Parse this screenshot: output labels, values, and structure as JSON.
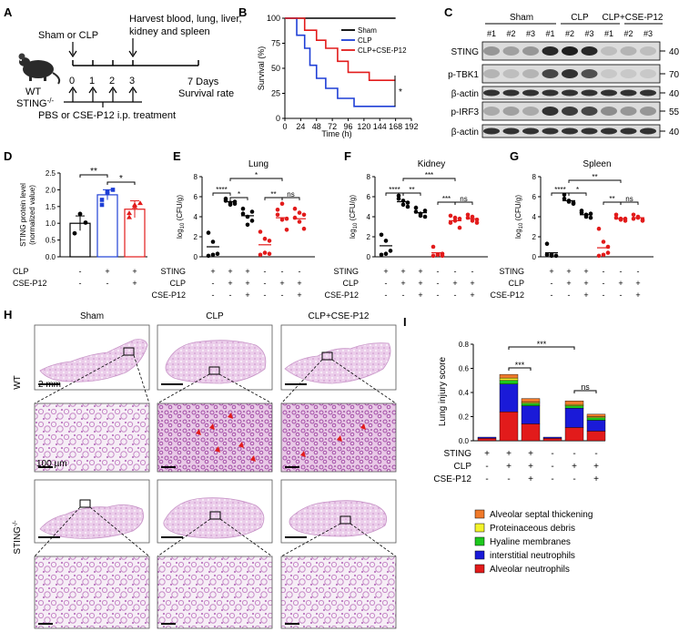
{
  "panel_letters": [
    "A",
    "B",
    "C",
    "D",
    "E",
    "F",
    "G",
    "H",
    "I"
  ],
  "panelA": {
    "top_left": "Sham or CLP",
    "top_right": "Harvest blood, lung, liver,",
    "top_right2": "kidney and spleen",
    "days": [
      "0",
      "1",
      "2",
      "3"
    ],
    "day7": "7 Days",
    "survival": "Survival rate",
    "mouse_line1": "WT",
    "mouse_line2": "STING",
    "mouse_sup": "-/-",
    "treatment": "PBS or CSE-P12 i.p. treatment"
  },
  "chartB": {
    "type": "line",
    "ylabel": "Survival (%)",
    "xlabel": "Time (h)",
    "x_ticks": [
      0,
      24,
      48,
      72,
      96,
      120,
      144,
      168,
      192
    ],
    "y_ticks": [
      0,
      25,
      50,
      75,
      100
    ],
    "colors": {
      "Sham": "#000000",
      "CLP": "#1f3fd6",
      "CLP+CSE-P12": "#e21b1b"
    },
    "series": [
      {
        "name": "Sham",
        "points": [
          [
            0,
            100
          ],
          [
            168,
            100
          ]
        ]
      },
      {
        "name": "CLP",
        "points": [
          [
            0,
            100
          ],
          [
            18,
            100
          ],
          [
            18,
            83
          ],
          [
            30,
            83
          ],
          [
            30,
            70
          ],
          [
            38,
            70
          ],
          [
            38,
            53
          ],
          [
            48,
            53
          ],
          [
            48,
            40
          ],
          [
            62,
            40
          ],
          [
            62,
            30
          ],
          [
            80,
            30
          ],
          [
            80,
            20
          ],
          [
            105,
            20
          ],
          [
            105,
            12
          ],
          [
            168,
            12
          ]
        ]
      },
      {
        "name": "CLP+CSE-P12",
        "points": [
          [
            0,
            100
          ],
          [
            30,
            100
          ],
          [
            30,
            88
          ],
          [
            48,
            88
          ],
          [
            48,
            78
          ],
          [
            62,
            78
          ],
          [
            62,
            70
          ],
          [
            80,
            70
          ],
          [
            80,
            57
          ],
          [
            96,
            57
          ],
          [
            96,
            46
          ],
          [
            128,
            46
          ],
          [
            128,
            38
          ],
          [
            168,
            38
          ]
        ]
      }
    ],
    "sig": "*"
  },
  "panelC": {
    "groups": [
      "Sham",
      "CLP",
      "CLP+CSE-P12"
    ],
    "lanes": [
      "#1",
      "#2",
      "#3",
      "#1",
      "#2",
      "#3",
      "#1",
      "#2",
      "#3"
    ],
    "rows": [
      "STING",
      "p-TBK1",
      "β-actin",
      "p-IRF3",
      "β-actin"
    ],
    "mw": [
      "40",
      "70",
      "40",
      "55",
      "40"
    ]
  },
  "chartD": {
    "type": "bar",
    "ylabel": "STING protein level",
    "ylabel2": "(normalized value)",
    "y_ticks": [
      "0.0",
      "0.5",
      "1.0",
      "1.5",
      "2.0",
      "2.5"
    ],
    "values": [
      1.0,
      1.85,
      1.42
    ],
    "errors": [
      0.22,
      0.15,
      0.25
    ],
    "points": [
      [
        0.7,
        1.28,
        1.02
      ],
      [
        1.55,
        1.95,
        2.0,
        1.7,
        1.9
      ],
      [
        1.18,
        1.55,
        1.6,
        1.3,
        1.5
      ]
    ],
    "colors": [
      "#000000",
      "#1f3fd6",
      "#e21b1b"
    ],
    "sig": [
      "**",
      "*"
    ],
    "row_labels": [
      "CLP",
      "CSE-P12"
    ],
    "row_values": [
      [
        "-",
        "+",
        "+"
      ],
      [
        "-",
        "-",
        "+"
      ]
    ]
  },
  "chartE": {
    "title": "Lung",
    "type": "scatter",
    "ylabel": "log",
    "ylabel_sub": "10",
    "ylabel_rest": " (CFU/g)",
    "y_ticks": [
      "0",
      "2",
      "4",
      "6",
      "8"
    ],
    "groups": [
      {
        "color": "#000000",
        "values": [
          2.4,
          1.5,
          0.3,
          0.1,
          0.2
        ],
        "mean": 1.0,
        "filled": true
      },
      {
        "color": "#000000",
        "values": [
          5.6,
          5.2,
          5.5,
          5.8,
          5.4,
          5.3
        ],
        "mean": 5.5,
        "filled": true
      },
      {
        "color": "#000000",
        "values": [
          4.8,
          4.0,
          3.6,
          4.3,
          3.2,
          4.5
        ],
        "mean": 4.1,
        "filled": true
      },
      {
        "color": "#e21b1b",
        "values": [
          2.5,
          1.8,
          0.3,
          0.2,
          0.4,
          1.6
        ],
        "mean": 1.2,
        "filled": true
      },
      {
        "color": "#e21b1b",
        "values": [
          4.7,
          3.7,
          2.7,
          4.2,
          5.3,
          3.8
        ],
        "mean": 3.9,
        "filled": true
      },
      {
        "color": "#e21b1b",
        "values": [
          4.8,
          4.4,
          2.8,
          3.9,
          3.5,
          4.2
        ],
        "mean": 3.8,
        "filled": true
      }
    ],
    "sig": [
      "****",
      "*",
      "*",
      "**",
      "ns"
    ]
  },
  "chartF": {
    "title": "Kidney",
    "type": "scatter",
    "y_ticks": [
      "0",
      "2",
      "4",
      "6",
      "8"
    ],
    "groups": [
      {
        "color": "#000000",
        "values": [
          2.2,
          1.6,
          0.6,
          0.2,
          0.3
        ],
        "mean": 1.1,
        "filled": true
      },
      {
        "color": "#000000",
        "values": [
          6.1,
          5.6,
          5.4,
          5.8,
          5.2,
          5.0
        ],
        "mean": 5.5,
        "filled": true
      },
      {
        "color": "#000000",
        "values": [
          4.9,
          4.3,
          4.0,
          4.5,
          4.1,
          4.6
        ],
        "mean": 4.4,
        "filled": true
      },
      {
        "color": "#e21b1b",
        "values": [
          1.0,
          0.2,
          0.3,
          0.1,
          0.2,
          0.1
        ],
        "mean": 0.4,
        "filled": true
      },
      {
        "color": "#e21b1b",
        "values": [
          4.1,
          3.6,
          2.9,
          3.4,
          3.9,
          3.8
        ],
        "mean": 3.6,
        "filled": true
      },
      {
        "color": "#e21b1b",
        "values": [
          4.2,
          3.6,
          3.4,
          3.9,
          4.0,
          3.7
        ],
        "mean": 3.8,
        "filled": true
      }
    ],
    "sig": [
      "****",
      "**",
      "***",
      "***",
      "ns"
    ]
  },
  "chartG": {
    "title": "Spleen",
    "type": "scatter",
    "y_ticks": [
      "0",
      "2",
      "4",
      "6",
      "8"
    ],
    "groups": [
      {
        "color": "#000000",
        "values": [
          1.3,
          0.2,
          0.1,
          0.2,
          0.1
        ],
        "mean": 0.4,
        "filled": true
      },
      {
        "color": "#000000",
        "values": [
          6.2,
          5.6,
          5.3,
          5.8,
          5.5,
          5.4
        ],
        "mean": 5.6,
        "filled": true
      },
      {
        "color": "#000000",
        "values": [
          4.6,
          4.2,
          3.9,
          4.4,
          4.0,
          4.3
        ],
        "mean": 4.2,
        "filled": true
      },
      {
        "color": "#e21b1b",
        "values": [
          2.8,
          1.5,
          0.4,
          0.1,
          0.2,
          1.0
        ],
        "mean": 0.9,
        "filled": true
      },
      {
        "color": "#e21b1b",
        "values": [
          4.2,
          3.8,
          3.6,
          3.9,
          3.7,
          3.8
        ],
        "mean": 3.8,
        "filled": true
      },
      {
        "color": "#e21b1b",
        "values": [
          4.2,
          3.9,
          3.7,
          3.8,
          4.0,
          3.6
        ],
        "mean": 3.9,
        "filled": true
      }
    ],
    "sig": [
      "****",
      "*",
      "**",
      "**",
      "ns"
    ]
  },
  "efg_rows": {
    "labels": [
      "STING",
      "CLP",
      "CSE-P12"
    ],
    "values": [
      [
        "+",
        "+",
        "+",
        "-",
        "-",
        "-"
      ],
      [
        "-",
        "+",
        "+",
        "-",
        "+",
        "+"
      ],
      [
        "-",
        "-",
        "+",
        "-",
        "-",
        "+"
      ]
    ]
  },
  "panelH": {
    "cols": [
      "Sham",
      "CLP",
      "CLP+CSE-P12"
    ],
    "row_wt": "WT",
    "row_ko": "STING",
    "row_ko_sup": "-/-",
    "scale_big": "2 mm",
    "scale_small": "100 µm"
  },
  "chartI": {
    "type": "bar",
    "ylabel": "Lung injury score",
    "y_ticks": [
      "0.0",
      "0.2",
      "0.4",
      "0.6",
      "0.8"
    ],
    "colors": {
      "Alveolar septal thickening": "#f07a2a",
      "Proteinaceous debris": "#f3f32a",
      "Hyaline membranes": "#1ec81e",
      "interstitial neutrophils": "#1a1ad8",
      "Alveolar neutrophils": "#e21b1b"
    },
    "stack_order": [
      "Alveolar neutrophils",
      "interstitial neutrophils",
      "Hyaline membranes",
      "Proteinaceous debris",
      "Alveolar septal thickening"
    ],
    "bars": [
      [
        0.02,
        0.01,
        0.0,
        0.0,
        0.0
      ],
      [
        0.24,
        0.23,
        0.03,
        0.02,
        0.03
      ],
      [
        0.14,
        0.15,
        0.02,
        0.01,
        0.03
      ],
      [
        0.02,
        0.01,
        0.0,
        0.0,
        0.0
      ],
      [
        0.11,
        0.16,
        0.02,
        0.01,
        0.03
      ],
      [
        0.08,
        0.09,
        0.02,
        0.01,
        0.02
      ]
    ],
    "sig": [
      "***",
      "***",
      "ns"
    ],
    "row_labels": [
      "STING",
      "CLP",
      "CSE-P12"
    ],
    "row_values": [
      [
        "+",
        "+",
        "+",
        "-",
        "-",
        "-"
      ],
      [
        "-",
        "+",
        "+",
        "-",
        "+",
        "+"
      ],
      [
        "-",
        "-",
        "+",
        "-",
        "-",
        "+"
      ]
    ],
    "legend": [
      "Alveolar septal thickening",
      "Proteinaceous debris",
      "Hyaline membranes",
      "interstitial neutrophils",
      "Alveolar neutrophils"
    ]
  }
}
